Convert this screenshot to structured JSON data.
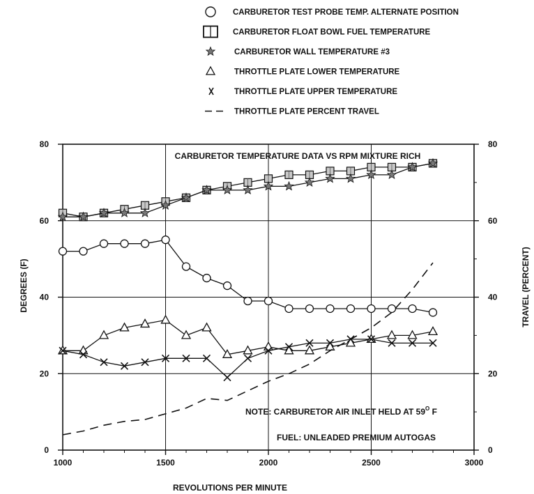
{
  "chart_data": {
    "type": "line",
    "title": "CARBURETOR TEMPERATURE DATA VS RPM MIXTURE RICH",
    "xlabel": "REVOLUTIONS PER MINUTE",
    "ylabel": "DEGREES (F)",
    "y2label": "TRAVEL (PERCENT)",
    "xlim": [
      1000,
      3000
    ],
    "ylim": [
      0,
      80
    ],
    "y2lim": [
      0,
      80
    ],
    "x_ticks": [
      "1000",
      "1500",
      "2000",
      "2500",
      "3000"
    ],
    "y_ticks": [
      "0",
      "20",
      "40",
      "60",
      "80"
    ],
    "y2_ticks": [
      "0",
      "20",
      "40",
      "60",
      "80"
    ],
    "grid": true,
    "legend_position": "top",
    "notes": [
      "NOTE:  CARBURETOR AIR INLET HELD AT 59",
      "FUEL:  UNLEADED PREMIUM AUTOGAS"
    ],
    "note_superscript": "O",
    "note_suffix": " F",
    "x": [
      1000,
      1100,
      1200,
      1300,
      1400,
      1500,
      1600,
      1700,
      1800,
      1900,
      2000,
      2100,
      2200,
      2300,
      2400,
      2500,
      2600,
      2700,
      2800
    ],
    "series": [
      {
        "name": "CARBURETOR TEST PROBE TEMP. ALTERNATE POSITION",
        "marker": "circle",
        "values": [
          52,
          52,
          54,
          54,
          54,
          55,
          48,
          45,
          43,
          39,
          39,
          37,
          37,
          37,
          37,
          37,
          37,
          37,
          36
        ]
      },
      {
        "name": "CARBURETOR FLOAT BOWL FUEL TEMPERATURE",
        "marker": "square",
        "values": [
          62,
          61,
          62,
          63,
          64,
          65,
          66,
          68,
          69,
          70,
          71,
          72,
          72,
          73,
          73,
          74,
          74,
          74,
          75
        ]
      },
      {
        "name": "CARBURETOR WALL TEMPERATURE #3",
        "marker": "star",
        "values": [
          61,
          61,
          62,
          62,
          62,
          64,
          66,
          68,
          68,
          68,
          69,
          69,
          70,
          71,
          71,
          72,
          72,
          74,
          75
        ]
      },
      {
        "name": "THROTTLE PLATE LOWER TEMPERATURE",
        "marker": "triangle",
        "values": [
          26,
          26,
          30,
          32,
          33,
          34,
          30,
          32,
          25,
          26,
          27,
          26,
          26,
          27,
          28,
          29,
          30,
          30,
          31
        ]
      },
      {
        "name": "THROTTLE PLATE UPPER TEMPERATURE",
        "marker": "x",
        "values": [
          26,
          25,
          23,
          22,
          23,
          24,
          24,
          24,
          19,
          24,
          26,
          27,
          28,
          28,
          29,
          29,
          28,
          28,
          28
        ]
      },
      {
        "name": "THROTTLE PLATE PERCENT TRAVEL",
        "marker": "dash",
        "axis": "right",
        "x": [
          1000,
          1100,
          1200,
          1300,
          1400,
          1500,
          1600,
          1700,
          1800,
          1900,
          2000,
          2100,
          2200,
          2300,
          2400,
          2500,
          2600,
          2700,
          2800
        ],
        "values": [
          4,
          5,
          6.5,
          7.5,
          8,
          9.5,
          11,
          13.5,
          13,
          15.5,
          18,
          20,
          22.5,
          26,
          29,
          32,
          36,
          42,
          49
        ]
      }
    ]
  }
}
